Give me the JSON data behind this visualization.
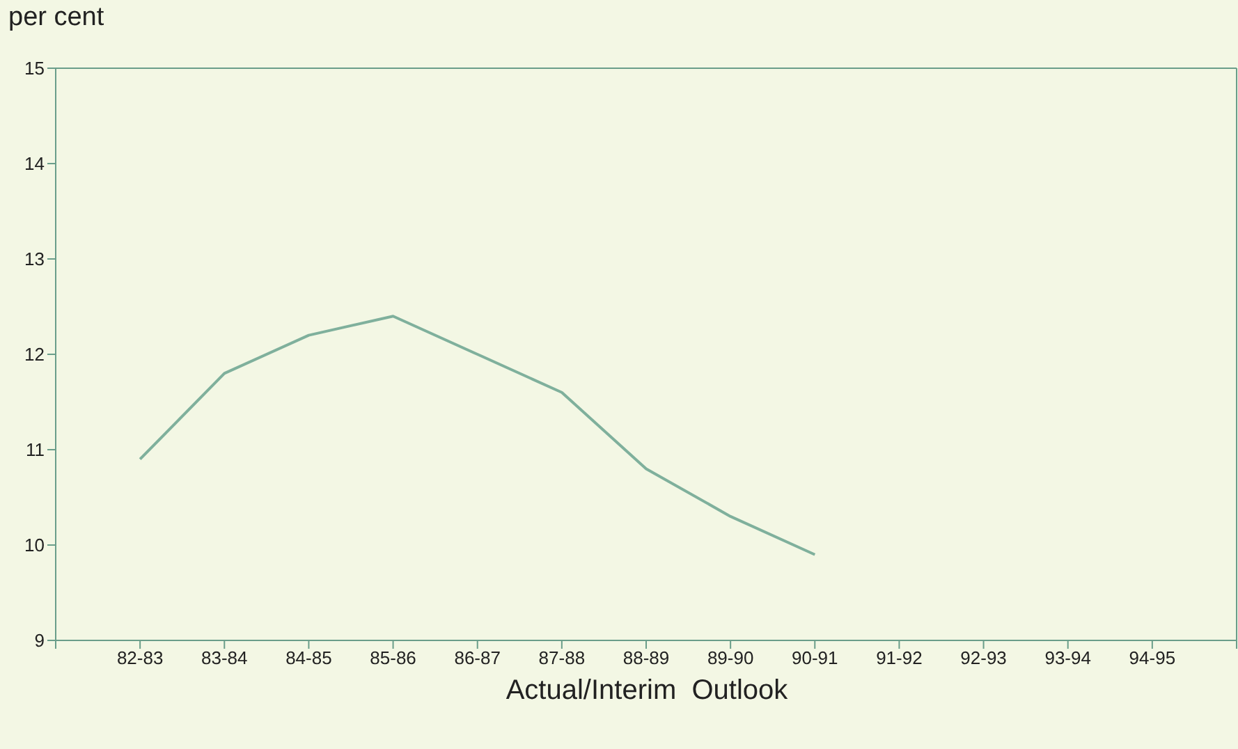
{
  "chart_data": {
    "type": "line",
    "ylabel": "per cent",
    "xlabel": "Actual/Interim  Outlook",
    "categories": [
      null,
      "82-83",
      "83-84",
      "84-85",
      "85-86",
      "86-87",
      "87-88",
      "88-89",
      "89-90",
      "90-91",
      "91-92",
      "92-93",
      "93-94",
      "94-95",
      null
    ],
    "values": [
      null,
      10.9,
      11.8,
      12.2,
      12.4,
      12.0,
      11.6,
      10.8,
      10.3,
      9.9,
      null,
      null,
      null,
      null,
      null
    ],
    "color": "#7fb09c",
    "ylim": [
      9,
      15
    ],
    "yticks": [
      9,
      10,
      11,
      12,
      13,
      14,
      15
    ],
    "grid": false,
    "marker": "none",
    "line_style": "solid"
  }
}
